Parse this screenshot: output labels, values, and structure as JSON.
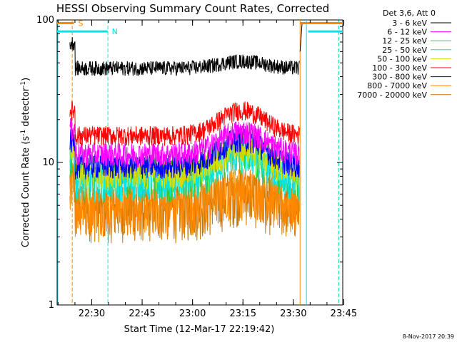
{
  "chart_data": {
    "type": "line",
    "title": "HESSI Observing Summary Count Rates, Corrected",
    "xlabel": "Start Time (12-Mar-17 22:19:42)",
    "ylabel_main": "Corrected Count Rate (s",
    "ylabel_sup1": "-1",
    "ylabel_mid": " detector",
    "ylabel_sup2": "-1",
    "ylabel_end": ")",
    "y_scale": "log",
    "ylim": [
      1,
      100
    ],
    "xlim_minutes": [
      0,
      85
    ],
    "x_ticks": [
      {
        "minute": 10.3,
        "label": "22:30"
      },
      {
        "minute": 25.3,
        "label": "22:45"
      },
      {
        "minute": 40.3,
        "label": "23:00"
      },
      {
        "minute": 55.3,
        "label": "23:15"
      },
      {
        "minute": 70.3,
        "label": "23:30"
      },
      {
        "minute": 85.3,
        "label": "23:45"
      }
    ],
    "y_ticks": [
      {
        "value": 1,
        "label": "1"
      },
      {
        "value": 10,
        "label": "10"
      },
      {
        "value": 100,
        "label": "100"
      }
    ],
    "legend_title": "Det 3,6, Att 0",
    "legend_placement": "right",
    "series": [
      {
        "name": "3 - 6 keV",
        "color": "#000000",
        "base": 46,
        "hump": 0.12,
        "noise": 0.06,
        "minFloor": 40
      },
      {
        "name": "6 - 12 keV",
        "color": "#ff00ff",
        "base": 11.5,
        "hump": 0.45,
        "noise": 0.1,
        "minFloor": 0
      },
      {
        "name": "12 - 25 keV",
        "color": "#33cc33",
        "base": 8.2,
        "hump": 0.55,
        "noise": 0.18,
        "minFloor": 0
      },
      {
        "name": "25 - 50 keV",
        "color": "#00e5e5",
        "base": 7.5,
        "hump": 0.55,
        "noise": 0.15,
        "minFloor": 0
      },
      {
        "name": "50 - 100 keV",
        "color": "#dddd00",
        "base": 8.5,
        "hump": 0.5,
        "noise": 0.12,
        "minFloor": 0
      },
      {
        "name": "100 - 300 keV",
        "color": "#ff0000",
        "base": 15.5,
        "hump": 0.5,
        "noise": 0.08,
        "minFloor": 0
      },
      {
        "name": "300 - 800 keV",
        "color": "#0000ff",
        "base": 9.5,
        "hump": 0.55,
        "noise": 0.1,
        "minFloor": 0
      },
      {
        "name": "800 - 7000 keV",
        "color": "#ff8800",
        "base": 5.0,
        "hump": 0.35,
        "noise": 0.2,
        "minFloor": 0
      },
      {
        "name": "7000 - 20000 keV",
        "color": "#cc7700",
        "base": 4.8,
        "hump": 0.3,
        "noise": 0.22,
        "minFloor": 0
      }
    ],
    "data_window_minutes": [
      3.8,
      72.2
    ],
    "hump_center_minute": 55,
    "hump_width_minute": 9,
    "night_markers": [
      {
        "start": 0,
        "end": 5,
        "label": "S",
        "color": "#ff8800",
        "level": 95
      },
      {
        "start": 0,
        "end": 15,
        "label": "N",
        "color": "#00e5e5",
        "level": 83
      }
    ],
    "day_markers": [
      {
        "start": 72.3,
        "end": 85,
        "color": "#ff8800",
        "level": 95
      },
      {
        "start": 74.7,
        "end": 85,
        "color": "#00e5e5",
        "level": 83
      }
    ],
    "vertical_lines": [
      {
        "minute": 0,
        "color": "#00e5e5",
        "style": "solid"
      },
      {
        "minute": 4.5,
        "color": "#ff8800",
        "style": "dashed"
      },
      {
        "minute": 15.1,
        "color": "#00e5e5",
        "style": "dashed"
      },
      {
        "minute": 72.3,
        "color": "#ff8800",
        "style": "solid"
      },
      {
        "minute": 74.2,
        "color": "#00e5e5",
        "style": "solid"
      },
      {
        "minute": 83.8,
        "color": "#ff8800",
        "style": "dashed"
      },
      {
        "minute": 83.8,
        "color": "#00e5e5",
        "style": "dashed"
      }
    ]
  },
  "timestamp": "8-Nov-2017 20:39"
}
